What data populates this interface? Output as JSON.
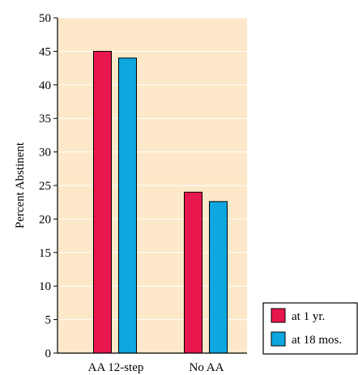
{
  "chart_data": {
    "type": "bar",
    "categories": [
      "AA 12-step",
      "No AA"
    ],
    "series": [
      {
        "name": "at 1 yr.",
        "values": [
          45,
          24
        ],
        "color": "#e8174e"
      },
      {
        "name": "at 18 mos.",
        "values": [
          44,
          22.6
        ],
        "color": "#0ea7df"
      }
    ],
    "title": "",
    "xlabel": "",
    "ylabel": "Percent Abstinent",
    "ylim": [
      0,
      50
    ],
    "yticks": [
      0,
      5,
      10,
      15,
      20,
      25,
      30,
      35,
      40,
      45,
      50
    ],
    "grid": true,
    "legend_position": "bottom-right",
    "colors": {
      "plot_background": "#fde9c9",
      "gridline": "#ffffff",
      "axis": "#000000"
    }
  }
}
